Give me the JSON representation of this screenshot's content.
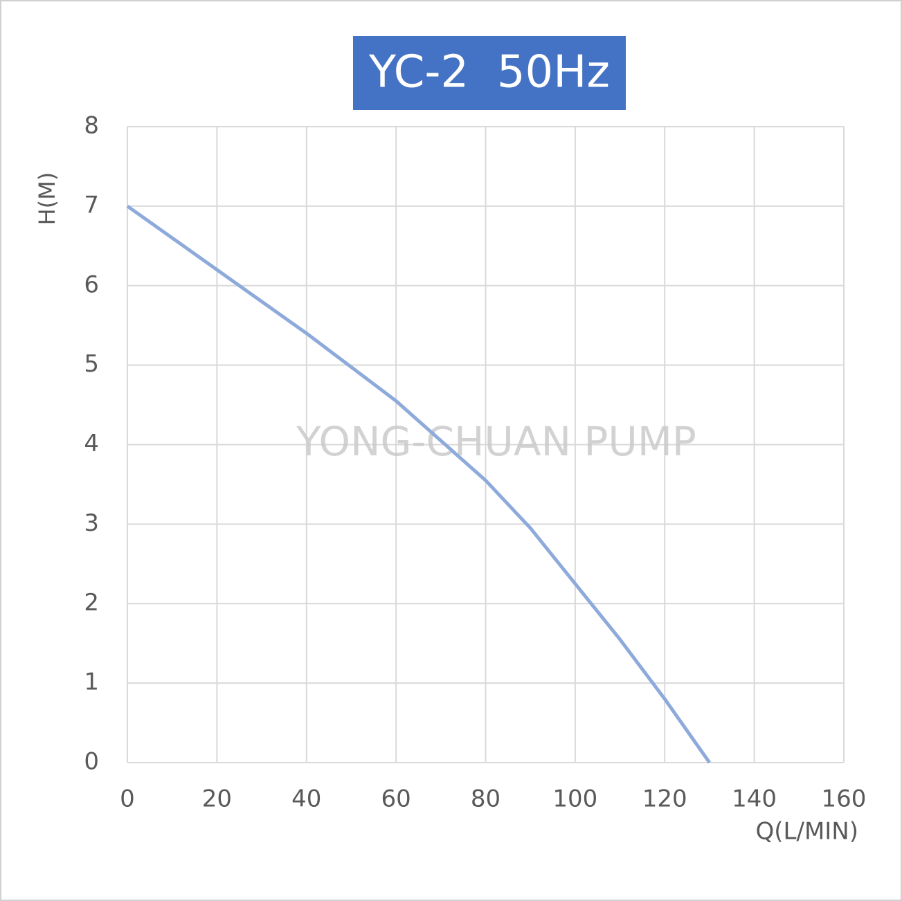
{
  "chart_data": {
    "type": "line",
    "title": "YC-2  50Hz",
    "watermark": "YONG-CHUAN PUMP",
    "x_label": "Q(L/MIN)",
    "y_label": "H(M)",
    "x": [
      0,
      20,
      40,
      60,
      70,
      80,
      90,
      100,
      110,
      120,
      130
    ],
    "series": [
      {
        "color": "#8eaadb",
        "values": [
          7,
          6.2,
          5.4,
          4.55,
          4.05,
          3.55,
          2.95,
          2.25,
          1.55,
          0.8,
          0
        ]
      }
    ],
    "xlim": [
      0,
      160
    ],
    "xticks": [
      0,
      20,
      40,
      60,
      80,
      100,
      120,
      140,
      160
    ],
    "ylim": [
      0,
      8
    ],
    "yticks": [
      0,
      1,
      2,
      3,
      4,
      5,
      6,
      7,
      8
    ],
    "grid": true,
    "title_background": "#4472c4"
  }
}
